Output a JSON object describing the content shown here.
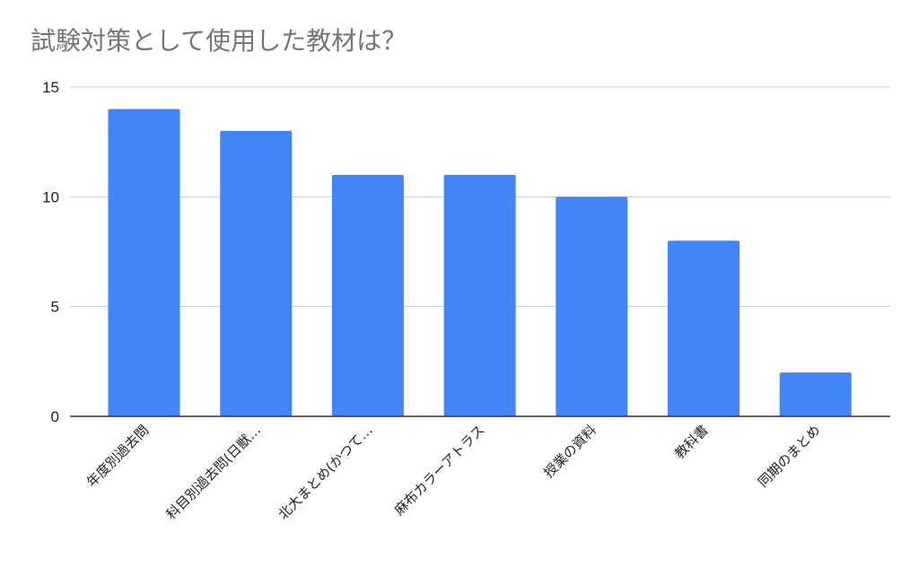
{
  "chart_data": {
    "type": "bar",
    "title": "試験対策として使用した教材は？",
    "xlabel": "",
    "ylabel": "",
    "categories": [
      "年度別過去問",
      "科目別過去問(日獣…",
      "北大まとめ(かつて…",
      "麻布カラーアトラス",
      "授業の資料",
      "教科書",
      "同期のまとめ"
    ],
    "values": [
      14,
      13,
      11,
      11,
      10,
      8,
      2
    ],
    "yticks": [
      0,
      5,
      10,
      15
    ],
    "ylim": [
      0,
      15
    ],
    "grid": true,
    "legend": "none",
    "bar_color": "#4285F4"
  }
}
